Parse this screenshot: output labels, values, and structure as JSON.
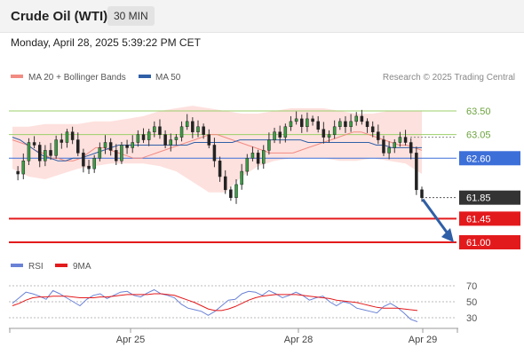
{
  "header": {
    "title": "Crude Oil (WTI)",
    "timeframe": "30 MIN"
  },
  "timestamp": "Monday, April 28, 2025 5:39:22 PM CET",
  "legend": [
    {
      "label": "MA 20 + Bollinger Bands",
      "color": "#f28b82"
    },
    {
      "label": "MA 50",
      "color": "#2f5fa7"
    }
  ],
  "source": "Research © 2025 Trading Central",
  "rsi_legend": [
    {
      "label": "RSI",
      "color": "#6a82d6"
    },
    {
      "label": "9MA",
      "color": "#e31a1c"
    }
  ],
  "chart_data": [
    {
      "type": "candlestick",
      "title": "Crude Oil (WTI)",
      "timeframe": "30 MIN",
      "x_ticks": [
        "Apr 25",
        "Apr 28",
        "Apr 29"
      ],
      "ylim": [
        60.8,
        64.2
      ],
      "levels": [
        {
          "label": "63.50",
          "value": 63.5,
          "color": "#9bcf6a"
        },
        {
          "label": "63.05",
          "value": 63.05,
          "color": "#9bcf6a"
        },
        {
          "label": "62.60",
          "value": 62.6,
          "color": "#3d6fd8"
        },
        {
          "label": "61.85",
          "value": 61.85,
          "color": "#333333"
        },
        {
          "label": "61.45",
          "value": 61.45,
          "color": "#e31a1c"
        },
        {
          "label": "61.00",
          "value": 61.0,
          "color": "#e31a1c"
        }
      ],
      "close_path": [
        62.35,
        62.3,
        62.55,
        62.9,
        62.85,
        62.55,
        62.75,
        62.65,
        62.95,
        62.9,
        63.1,
        62.95,
        62.7,
        62.45,
        62.4,
        62.6,
        62.8,
        62.9,
        62.75,
        62.55,
        62.85,
        62.8,
        62.9,
        63.05,
        62.95,
        63.1,
        63.2,
        63.05,
        62.85,
        62.95,
        63.0,
        63.2,
        63.3,
        63.1,
        63.2,
        63.05,
        62.85,
        62.55,
        62.25,
        62.0,
        61.85,
        62.1,
        62.35,
        62.6,
        62.7,
        62.5,
        62.75,
        62.95,
        63.1,
        63.0,
        63.2,
        63.3,
        63.35,
        63.2,
        63.35,
        63.3,
        63.15,
        63.0,
        63.05,
        63.2,
        63.3,
        63.2,
        63.3,
        63.4,
        63.3,
        63.2,
        63.1,
        62.95,
        62.7,
        62.8,
        62.9,
        63.0,
        62.9,
        62.7,
        62.0,
        61.85
      ],
      "ma20_path": [
        62.95,
        62.9,
        62.85,
        62.75,
        62.7,
        62.6,
        62.6,
        62.55,
        62.55,
        62.6,
        62.7,
        62.8,
        62.8,
        62.75,
        62.7,
        62.65,
        62.6,
        62.6,
        62.65,
        62.7,
        62.75,
        62.8,
        62.85,
        62.9,
        62.95,
        63.0,
        63.05,
        63.05,
        63.0,
        62.95,
        62.9,
        62.85,
        62.8,
        62.75,
        62.7,
        62.7,
        62.7,
        62.7,
        62.75,
        62.8,
        62.85,
        62.9,
        62.95,
        63.0,
        63.05,
        63.1,
        63.1,
        63.05,
        63.0,
        62.95,
        62.9,
        62.85,
        62.85,
        62.8,
        62.75
      ],
      "ma50_path": [
        63.0,
        62.95,
        62.85,
        62.75,
        62.65,
        62.6,
        62.55,
        62.55,
        62.6,
        62.6,
        62.65,
        62.7,
        62.75,
        62.8,
        62.85,
        62.85,
        62.85,
        62.85,
        62.85,
        62.85,
        62.85,
        62.85,
        62.85,
        62.85,
        62.9,
        62.9,
        62.9,
        62.9,
        62.9,
        62.9,
        62.95,
        62.95,
        62.95,
        62.95,
        62.95,
        62.95,
        62.95,
        62.95,
        62.95,
        62.9,
        62.9,
        62.9,
        62.9,
        62.9,
        62.9,
        62.9,
        62.9,
        62.9,
        62.85,
        62.85,
        62.8,
        62.8,
        62.8,
        62.8,
        62.8
      ],
      "bollinger_upper": [
        63.2,
        63.2,
        63.25,
        63.25,
        63.25,
        63.3,
        63.3,
        63.35,
        63.4,
        63.5,
        63.55,
        63.6,
        63.55,
        63.5,
        63.45,
        63.45,
        63.5,
        63.55,
        63.55,
        63.55,
        63.5,
        63.45,
        63.45,
        63.5,
        63.5,
        63.5
      ],
      "bollinger_lower": [
        62.4,
        62.25,
        62.2,
        62.3,
        62.4,
        62.45,
        62.5,
        62.5,
        62.5,
        62.45,
        62.35,
        62.15,
        61.95,
        61.95,
        62.25,
        62.45,
        62.55,
        62.6,
        62.6,
        62.6,
        62.55,
        62.55,
        62.6,
        62.55,
        62.5,
        62.3
      ],
      "projection": {
        "from": 61.85,
        "to": 61.0
      }
    },
    {
      "type": "line",
      "title": "RSI",
      "ylim": [
        20,
        80
      ],
      "y_ticks": [
        70,
        50,
        30
      ],
      "series": [
        {
          "name": "RSI",
          "values": [
            48,
            55,
            62,
            60,
            57,
            53,
            64,
            60,
            55,
            50,
            45,
            53,
            58,
            60,
            54,
            58,
            62,
            63,
            58,
            56,
            61,
            65,
            60,
            58,
            55,
            47,
            42,
            40,
            38,
            33,
            38,
            45,
            52,
            53,
            60,
            63,
            62,
            58,
            64,
            60,
            55,
            58,
            62,
            58,
            52,
            55,
            57,
            50,
            45,
            50,
            48,
            42,
            40,
            38,
            36,
            44,
            48,
            43,
            36,
            28,
            25
          ]
        },
        {
          "name": "9MA",
          "values": [
            45,
            48,
            52,
            55,
            56,
            56,
            57,
            57,
            57,
            56,
            55,
            55,
            55,
            56,
            56,
            57,
            58,
            59,
            59,
            59,
            59,
            60,
            60,
            59,
            58,
            55,
            52,
            49,
            45,
            41,
            39,
            39,
            41,
            44,
            48,
            52,
            55,
            57,
            58,
            59,
            59,
            59,
            59,
            58,
            57,
            56,
            55,
            54,
            52,
            51,
            50,
            49,
            47,
            45,
            43,
            42,
            42,
            42,
            41,
            40,
            39
          ]
        }
      ]
    }
  ]
}
